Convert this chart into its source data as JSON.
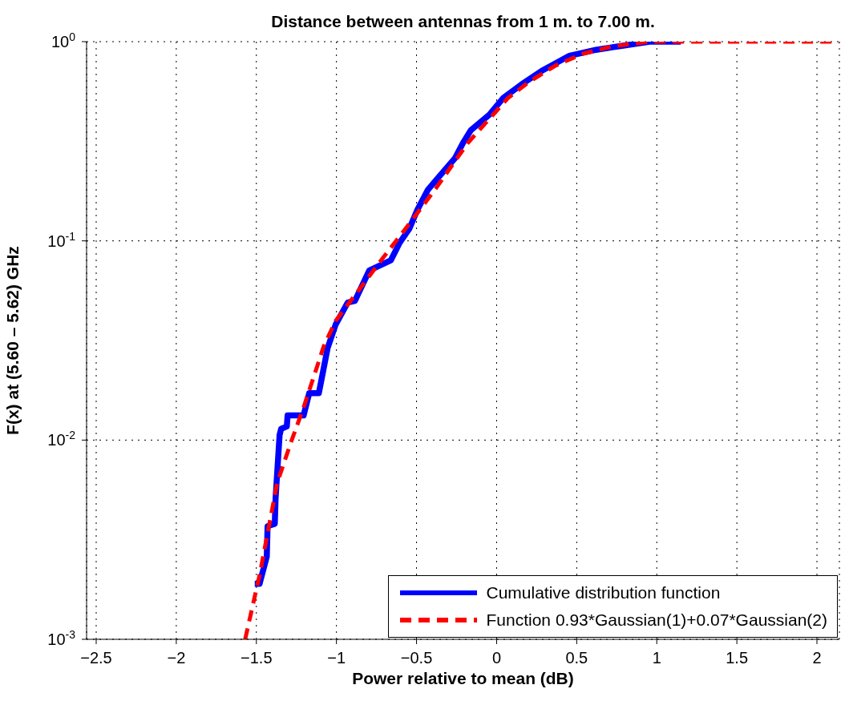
{
  "chart_data": {
    "type": "line",
    "title": "Distance between antennas from 1 m. to 7.00 m.",
    "xlabel": "Power relative to mean (dB)",
    "ylabel": "F(x) at (5.60 – 5.62) GHz",
    "log": "y",
    "grid": true,
    "legend": "bottom right",
    "xlim": [
      -2.56,
      2.14
    ],
    "xticks": [
      {
        "value": -2.5,
        "label": "−2.5"
      },
      {
        "value": -2,
        "label": "−2"
      },
      {
        "value": -1.5,
        "label": "−1.5"
      },
      {
        "value": -1,
        "label": "−1"
      },
      {
        "value": -0.5,
        "label": "−0.5"
      },
      0,
      0.5,
      1,
      1.5,
      2
    ],
    "ylim": [
      0.001,
      1
    ],
    "yticks": [
      {
        "value": 0.001,
        "label": "10$^{-3}$"
      },
      {
        "value": 0.01,
        "label": "10$^{-2}$"
      },
      {
        "value": 0.1,
        "label": "10$^{-1}$"
      },
      {
        "value": 1,
        "label": "10$^{0}$"
      }
    ],
    "series": [
      {
        "name": "Cumulative distribution function",
        "color": "#0000ff",
        "line_style": "solid",
        "x": [
          -1.51,
          -1.48,
          -1.435,
          -1.43,
          -1.385,
          -1.38,
          -1.355,
          -1.345,
          -1.31,
          -1.305,
          -1.205,
          -1.17,
          -1.11,
          -1.095,
          -1.055,
          -1.005,
          -0.93,
          -0.885,
          -0.795,
          -0.66,
          -0.605,
          -0.545,
          -0.495,
          -0.43,
          -0.36,
          -0.26,
          -0.21,
          -0.16,
          -0.045,
          0.04,
          0.155,
          0.29,
          0.455,
          0.62,
          0.79,
          0.955,
          1.15
        ],
        "values": [
          0.0019,
          0.0019,
          0.0026,
          0.0037,
          0.0038,
          0.0051,
          0.0106,
          0.0114,
          0.0117,
          0.0133,
          0.0133,
          0.0172,
          0.0172,
          0.0198,
          0.029,
          0.038,
          0.049,
          0.05,
          0.071,
          0.08,
          0.098,
          0.115,
          0.143,
          0.18,
          0.21,
          0.26,
          0.31,
          0.36,
          0.43,
          0.52,
          0.61,
          0.72,
          0.85,
          0.91,
          0.955,
          1,
          1
        ]
      },
      {
        "name": "Function 0.93*Gaussian(1)+0.07*Gaussian(2)",
        "color": "#ff0000",
        "line_style": "dashed",
        "x": [
          -1.57,
          -1.48,
          -1.43,
          -1.37,
          -1.285,
          -1.205,
          -1.145,
          -1.08,
          -1.005,
          -0.71,
          -0.58,
          -0.38,
          -0.18,
          -0.045,
          0.07,
          0.205,
          0.37,
          0.54,
          0.72,
          0.955,
          1.2,
          2.14
        ],
        "values": [
          0.001,
          0.0021,
          0.0034,
          0.0061,
          0.0097,
          0.0146,
          0.0204,
          0.0295,
          0.0397,
          0.082,
          0.112,
          0.183,
          0.31,
          0.41,
          0.52,
          0.63,
          0.76,
          0.87,
          0.946,
          1,
          1,
          1
        ]
      }
    ]
  }
}
